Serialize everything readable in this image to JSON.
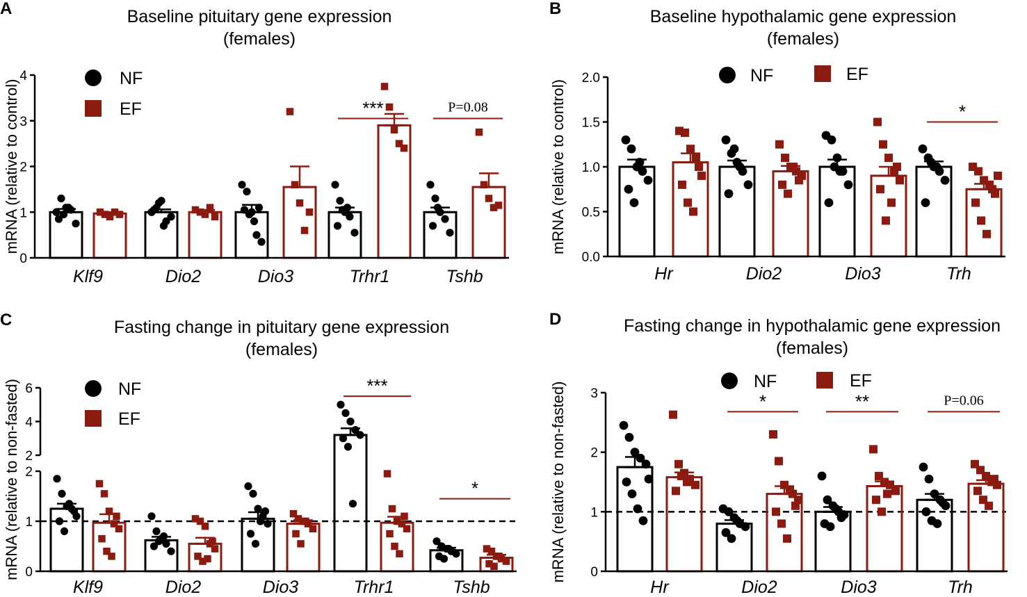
{
  "figure": {
    "colors": {
      "NF": "#000000",
      "EF": "#8b1a10"
    },
    "legend_labels": [
      "NF",
      "EF"
    ]
  },
  "chart_data": [
    {
      "panel": "A",
      "type": "bar",
      "title": "Baseline pituitary gene expression",
      "subtitle": "(females)",
      "ylabel": "mRNA (relative to control)",
      "ylim": [
        0,
        4
      ],
      "yticks": [
        "0",
        "1",
        "2",
        "3",
        "4"
      ],
      "categories": [
        "Klf9",
        "Dio2",
        "Dio3",
        "Trhr1",
        "Tshb"
      ],
      "legend": [
        "NF",
        "EF"
      ],
      "series": [
        {
          "name": "NF",
          "means": [
            1.0,
            1.0,
            1.0,
            1.0,
            1.0
          ],
          "sem": [
            0.07,
            0.06,
            0.16,
            0.1,
            0.1
          ],
          "points": [
            [
              1.0,
              1.3,
              1.1,
              1.05,
              0.75,
              0.85,
              0.95,
              1.1
            ],
            [
              1.0,
              1.1,
              1.25,
              0.8,
              0.9,
              1.05,
              1.2,
              0.7
            ],
            [
              1.6,
              1.45,
              1.0,
              0.5,
              0.35,
              1.05,
              0.95,
              0.8,
              1.1
            ],
            [
              1.6,
              1.25,
              1.0,
              0.9,
              0.55,
              0.7,
              1.05,
              1.1
            ],
            [
              1.6,
              1.3,
              1.0,
              0.85,
              0.55,
              0.7,
              1.1
            ]
          ]
        },
        {
          "name": "EF",
          "means": [
            0.97,
            1.0,
            1.55,
            2.9,
            1.55
          ],
          "sem": [
            0.03,
            0.05,
            0.45,
            0.25,
            0.3
          ],
          "points": [
            [
              1.0,
              0.95,
              0.9,
              1.0,
              0.95
            ],
            [
              1.05,
              1.0,
              0.95,
              1.1,
              0.9
            ],
            [
              3.2,
              1.6,
              1.2,
              0.6,
              1.0
            ],
            [
              3.75,
              3.3,
              2.8,
              2.5,
              2.4
            ],
            [
              2.75,
              1.6,
              1.3,
              1.1,
              1.15
            ]
          ]
        }
      ],
      "annotations": [
        {
          "text": "***",
          "category": "Trhr1",
          "y": 3.05
        },
        {
          "text": "P=0.08",
          "category": "Tshb",
          "y": 3.05
        }
      ]
    },
    {
      "panel": "B",
      "type": "bar",
      "title": "Baseline hypothalamic gene expression",
      "subtitle": "(females)",
      "ylabel": "mRNA (relative to control)",
      "ylim": [
        0,
        2
      ],
      "yticks": [
        "0.0",
        "0.5",
        "1.0",
        "1.5",
        "2.0"
      ],
      "categories": [
        "Hr",
        "Dio2",
        "Dio3",
        "Trh"
      ],
      "legend": [
        "NF",
        "EF"
      ],
      "series": [
        {
          "name": "NF",
          "means": [
            1.0,
            1.0,
            1.0,
            1.0
          ],
          "sem": [
            0.08,
            0.07,
            0.08,
            0.06
          ],
          "points": [
            [
              1.3,
              1.2,
              1.0,
              0.95,
              0.85,
              0.75,
              0.6,
              1.05
            ],
            [
              1.3,
              1.15,
              1.05,
              0.95,
              0.8,
              0.7,
              1.2,
              1.0
            ],
            [
              1.35,
              1.3,
              1.1,
              0.95,
              0.8,
              0.6,
              1.0,
              0.95
            ],
            [
              1.2,
              1.1,
              1.0,
              0.95,
              0.85,
              0.6,
              1.05,
              1.0
            ]
          ]
        },
        {
          "name": "EF",
          "means": [
            1.05,
            0.95,
            0.9,
            0.75
          ],
          "sem": [
            0.1,
            0.06,
            0.1,
            0.06
          ],
          "points": [
            [
              1.4,
              1.38,
              1.2,
              1.1,
              0.9,
              0.8,
              0.6,
              0.5,
              1.0
            ],
            [
              1.25,
              1.1,
              1.0,
              0.95,
              0.9,
              0.8,
              0.7,
              1.0,
              0.85
            ],
            [
              1.5,
              1.25,
              1.1,
              0.95,
              0.85,
              0.75,
              0.4,
              0.6,
              1.0
            ],
            [
              1.0,
              0.95,
              0.85,
              0.8,
              0.7,
              0.6,
              0.4,
              0.25,
              0.75,
              0.9
            ]
          ]
        }
      ],
      "annotations": [
        {
          "text": "*",
          "category": "Trh",
          "y": 1.5
        }
      ]
    },
    {
      "panel": "C",
      "type": "bar",
      "title": "Fasting change in pituitary gene expression",
      "subtitle": "(females)",
      "ylabel": "mRNA (relative to non-fasted)",
      "ylim": [
        0,
        6
      ],
      "axis_break": [
        2,
        2
      ],
      "yticks": [
        "0",
        "1",
        "2",
        "2",
        "4",
        "6"
      ],
      "reference_line": 1,
      "categories": [
        "Klf9",
        "Dio2",
        "Dio3",
        "Trhr1",
        "Tshb"
      ],
      "legend": [
        "NF",
        "EF"
      ],
      "series": [
        {
          "name": "NF",
          "means": [
            1.25,
            0.62,
            1.05,
            3.2,
            0.42
          ],
          "sem": [
            0.1,
            0.07,
            0.13,
            0.4,
            0.05
          ],
          "points": [
            [
              1.85,
              1.55,
              1.3,
              1.25,
              1.1,
              1.0,
              0.8,
              1.35,
              1.2
            ],
            [
              1.1,
              0.8,
              0.65,
              0.55,
              0.4,
              0.5,
              0.6,
              0.7
            ],
            [
              1.7,
              1.55,
              1.25,
              1.1,
              0.95,
              0.75,
              0.55,
              1.0,
              1.2
            ],
            [
              5.0,
              4.5,
              4.0,
              3.5,
              3.2,
              3.0,
              2.5,
              1.35
            ],
            [
              0.6,
              0.5,
              0.45,
              0.4,
              0.35,
              0.3,
              0.25,
              0.45
            ]
          ]
        },
        {
          "name": "EF",
          "means": [
            0.97,
            0.55,
            0.95,
            0.97,
            0.27
          ],
          "sem": [
            0.17,
            0.12,
            0.07,
            0.12,
            0.06
          ],
          "points": [
            [
              1.75,
              1.55,
              1.2,
              0.95,
              0.85,
              0.65,
              0.4,
              0.3,
              1.1
            ],
            [
              1.05,
              1.0,
              0.9,
              0.55,
              0.45,
              0.3,
              0.2,
              0.25,
              0.6
            ],
            [
              1.15,
              1.05,
              1.0,
              0.95,
              0.85,
              0.75,
              0.55,
              1.0
            ],
            [
              1.95,
              1.25,
              1.0,
              0.95,
              0.85,
              0.75,
              0.5,
              0.35,
              1.1
            ],
            [
              0.45,
              0.4,
              0.3,
              0.25,
              0.2,
              0.15,
              0.1,
              0.3
            ]
          ]
        }
      ],
      "annotations": [
        {
          "text": "***",
          "category": "Trhr1",
          "y": 5.5
        },
        {
          "text": "*",
          "category": "Tshb",
          "y": 1.45
        }
      ]
    },
    {
      "panel": "D",
      "type": "bar",
      "title": "Fasting change in hypothalamic gene expression",
      "subtitle": "(females)",
      "ylabel": "mRNA (relative to non-fasted)",
      "ylim": [
        0,
        3
      ],
      "yticks": [
        "0",
        "1",
        "2",
        "3"
      ],
      "reference_line": 1,
      "categories": [
        "Hr",
        "Dio2",
        "Dio3",
        "Trh"
      ],
      "legend": [
        "NF",
        "EF"
      ],
      "series": [
        {
          "name": "NF",
          "means": [
            1.75,
            0.8,
            1.0,
            1.2
          ],
          "sem": [
            0.17,
            0.06,
            0.08,
            0.1
          ],
          "points": [
            [
              2.45,
              2.25,
              2.0,
              1.9,
              1.8,
              1.5,
              1.3,
              1.05,
              0.85,
              1.55
            ],
            [
              1.05,
              1.0,
              0.9,
              0.8,
              0.75,
              0.65,
              0.55,
              0.85
            ],
            [
              1.6,
              1.2,
              1.1,
              1.0,
              0.95,
              0.8,
              0.75,
              1.05,
              0.9
            ],
            [
              1.75,
              1.55,
              1.3,
              1.2,
              1.1,
              1.0,
              0.85,
              0.8,
              1.15
            ]
          ]
        },
        {
          "name": "EF",
          "means": [
            1.58,
            1.3,
            1.43,
            1.47
          ],
          "sem": [
            0.08,
            0.13,
            0.08,
            0.06
          ],
          "points": [
            [
              2.63,
              1.8,
              1.65,
              1.55,
              1.45,
              1.35,
              1.6,
              1.5
            ],
            [
              2.3,
              1.85,
              1.45,
              1.35,
              1.1,
              1.0,
              0.8,
              0.55,
              1.3,
              1.2
            ],
            [
              2.05,
              1.6,
              1.5,
              1.45,
              1.35,
              1.2,
              1.0,
              1.3
            ],
            [
              1.8,
              1.7,
              1.6,
              1.5,
              1.45,
              1.35,
              1.2,
              1.1,
              1.55
            ]
          ]
        }
      ],
      "annotations": [
        {
          "text": "*",
          "category": "Dio2",
          "y": 2.68
        },
        {
          "text": "**",
          "category": "Dio3",
          "y": 2.68
        },
        {
          "text": "P=0.06",
          "category": "Trh",
          "y": 2.68
        }
      ]
    }
  ]
}
